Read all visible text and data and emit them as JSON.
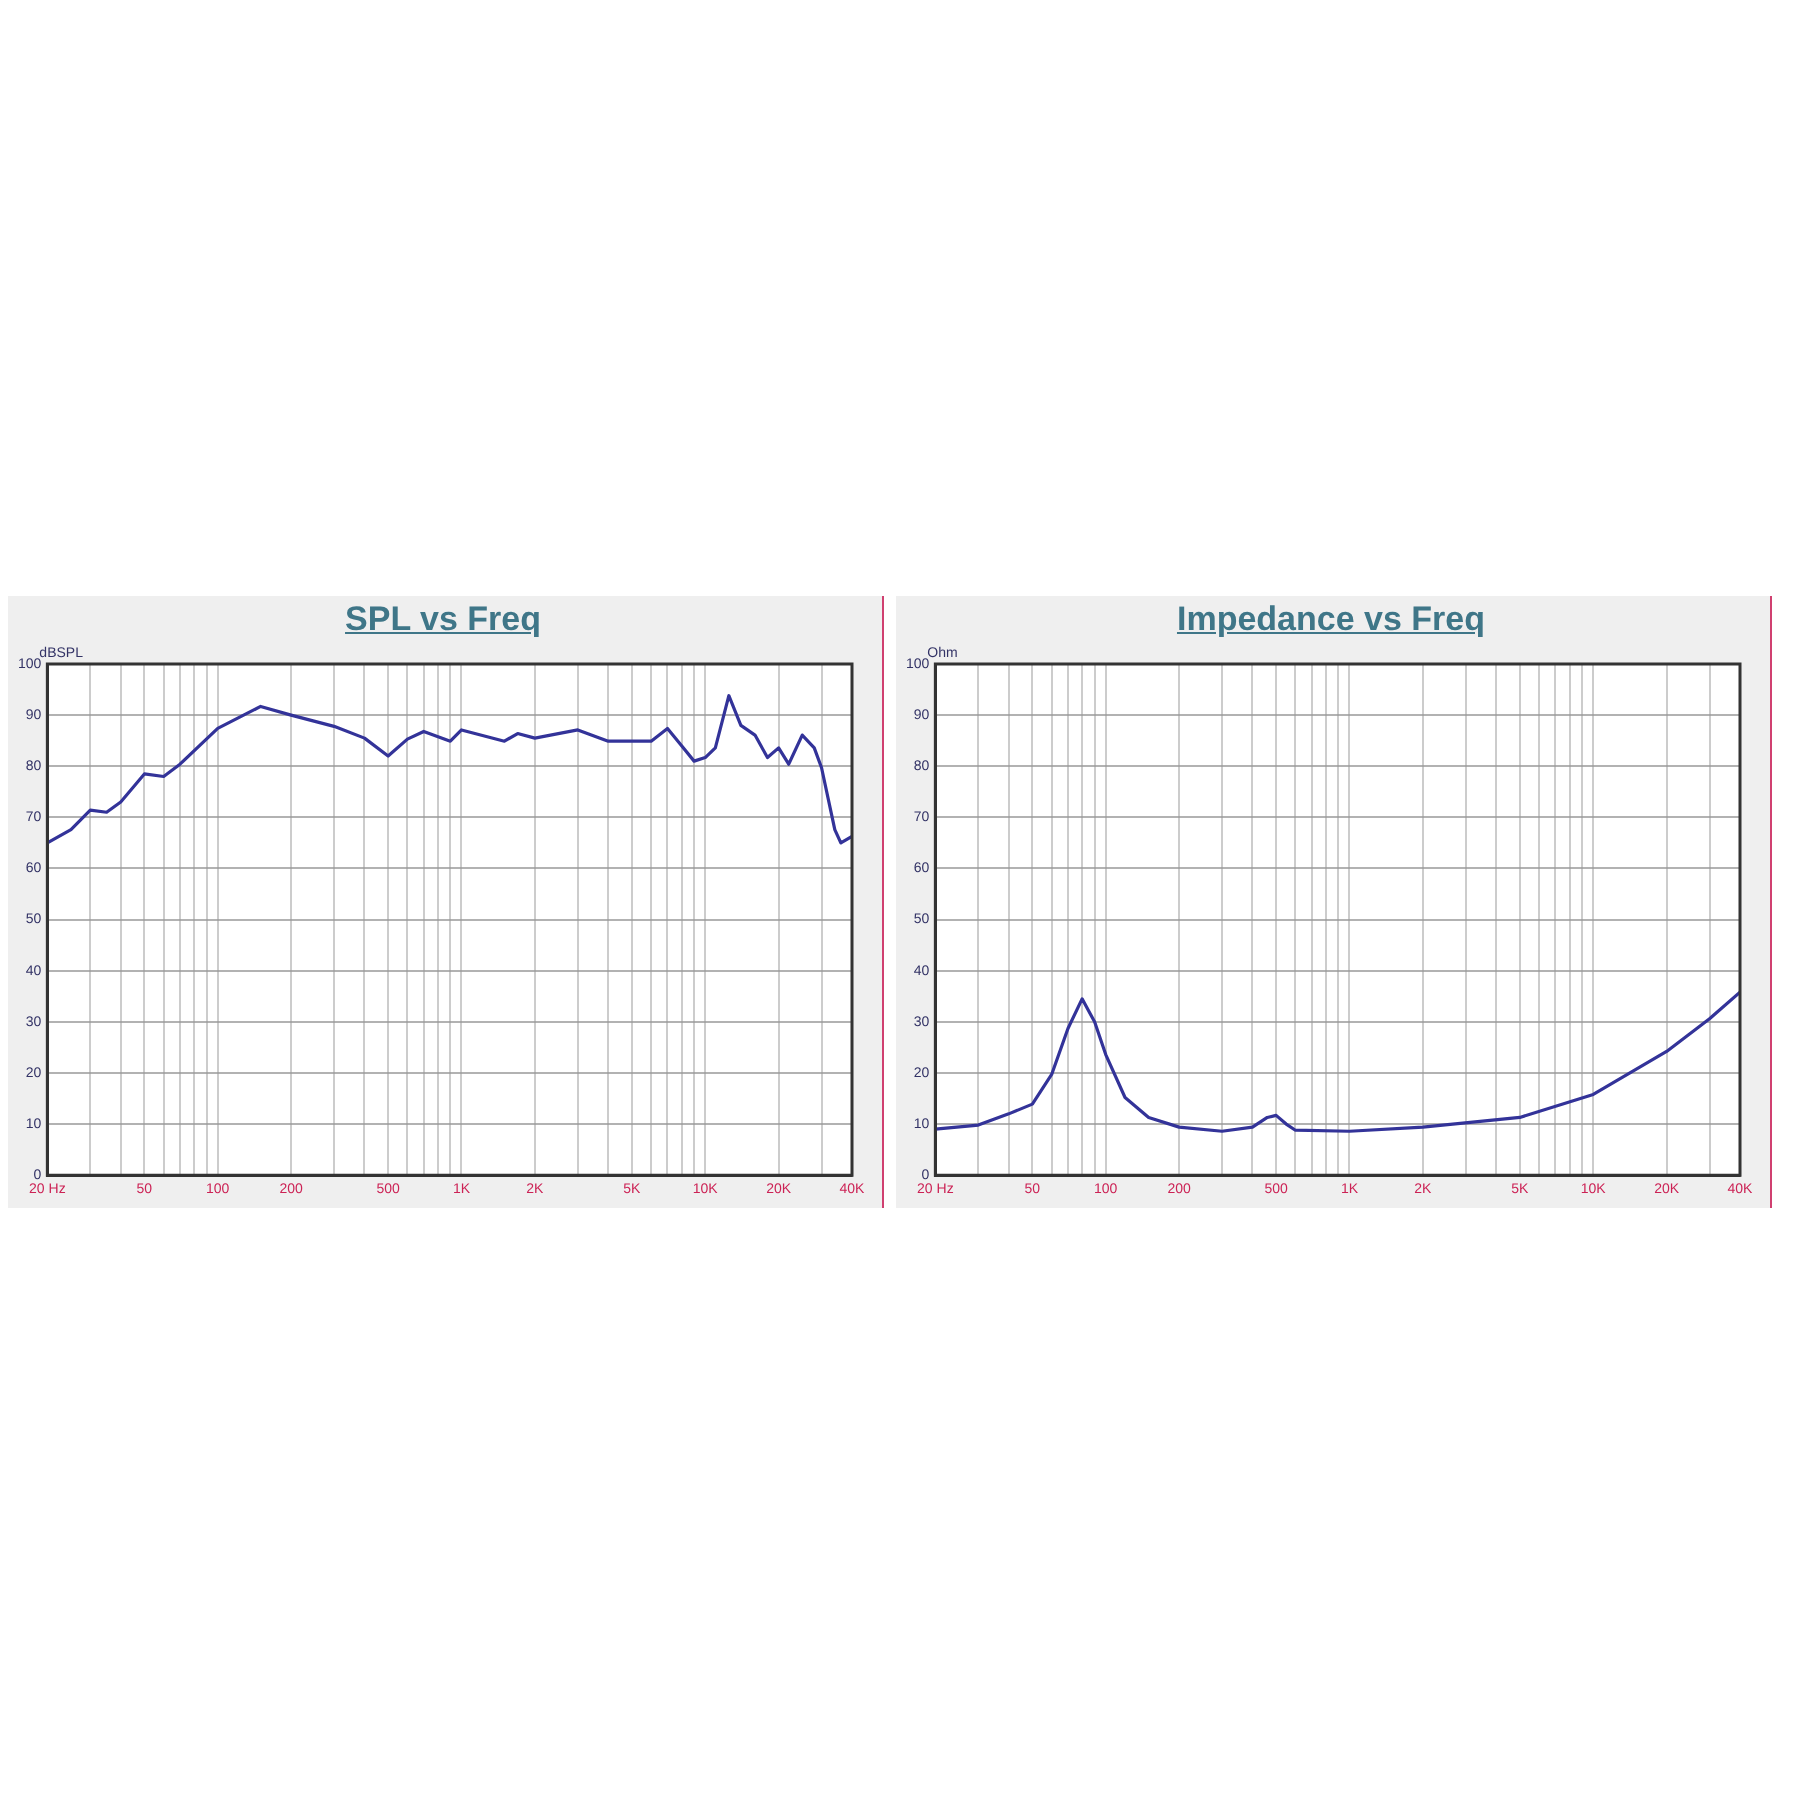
{
  "chart_data": [
    {
      "type": "line",
      "title": "SPL vs Freq",
      "ylabel": "dBSPL",
      "log": "x",
      "grid": true,
      "x": [
        20,
        25,
        30,
        35,
        40,
        50,
        60,
        70,
        100,
        150,
        200,
        300,
        400,
        500,
        600,
        700,
        900,
        1000,
        1500,
        1700,
        2000,
        3000,
        4000,
        5000,
        6000,
        7000,
        8000,
        9000,
        10000,
        11000,
        12500,
        14000,
        16000,
        18000,
        20000,
        22000,
        25000,
        28000,
        30000,
        34000,
        36000,
        40000
      ],
      "series": [
        {
          "color": "#333399",
          "values": [
            65,
            67.6,
            71.4,
            71,
            73,
            78.5,
            78,
            80.4,
            87.4,
            91.7,
            90,
            87.8,
            85.5,
            82,
            85.3,
            86.8,
            84.9,
            87.1,
            84.9,
            86.4,
            85.5,
            87.1,
            84.9,
            84.9,
            84.9,
            87.4,
            84,
            81,
            81.7,
            83.6,
            93.8,
            88,
            86.1,
            81.7,
            83.6,
            80.4,
            86.1,
            83.6,
            79.7,
            67.6,
            65,
            66.3
          ]
        }
      ],
      "xlim": [
        20,
        40000
      ],
      "xticks": [
        {
          "value": 20,
          "label": "20 Hz"
        },
        {
          "value": 30,
          "label": null
        },
        {
          "value": 40,
          "label": null
        },
        50,
        {
          "value": 60,
          "label": null
        },
        {
          "value": 70,
          "label": null
        },
        {
          "value": 80,
          "label": null
        },
        {
          "value": 90,
          "label": null
        },
        100,
        200,
        {
          "value": 300,
          "label": null
        },
        {
          "value": 400,
          "label": null
        },
        500,
        {
          "value": 600,
          "label": null
        },
        {
          "value": 700,
          "label": null
        },
        {
          "value": 800,
          "label": null
        },
        {
          "value": 900,
          "label": null
        },
        {
          "value": 1000,
          "label": "1K"
        },
        {
          "value": 2000,
          "label": "2K"
        },
        {
          "value": 3000,
          "label": null
        },
        {
          "value": 4000,
          "label": null
        },
        {
          "value": 5000,
          "label": "5K"
        },
        {
          "value": 6000,
          "label": null
        },
        {
          "value": 7000,
          "label": null
        },
        {
          "value": 8000,
          "label": null
        },
        {
          "value": 9000,
          "label": null
        },
        {
          "value": 10000,
          "label": "10K"
        },
        {
          "value": 20000,
          "label": "20K"
        },
        {
          "value": 30000,
          "label": null
        },
        {
          "value": 40000,
          "label": "40K"
        }
      ],
      "ylim": [
        0,
        100
      ],
      "yticks": [
        0,
        10,
        20,
        30,
        40,
        50,
        60,
        70,
        80,
        90,
        100
      ]
    },
    {
      "type": "line",
      "title": "Impedance vs Freq",
      "ylabel": "Ohm",
      "log": "x",
      "grid": true,
      "x": [
        20,
        30,
        40,
        50,
        60,
        70,
        80,
        90,
        100,
        120,
        150,
        200,
        300,
        400,
        460,
        500,
        550,
        600,
        1000,
        2000,
        5000,
        10000,
        20000,
        30000,
        40000
      ],
      "series": [
        {
          "color": "#333399",
          "values": [
            9,
            9.8,
            12,
            13.9,
            19.7,
            28.7,
            34.5,
            30,
            23.6,
            15.2,
            11.3,
            9.4,
            8.6,
            9.4,
            11.3,
            11.7,
            10,
            8.8,
            8.6,
            9.4,
            11.3,
            15.8,
            24.2,
            30.6,
            35.8
          ]
        }
      ],
      "xlim": [
        20,
        40000
      ],
      "xticks": [
        {
          "value": 20,
          "label": "20 Hz"
        },
        {
          "value": 30,
          "label": null
        },
        {
          "value": 40,
          "label": null
        },
        50,
        {
          "value": 60,
          "label": null
        },
        {
          "value": 70,
          "label": null
        },
        {
          "value": 80,
          "label": null
        },
        {
          "value": 90,
          "label": null
        },
        100,
        200,
        {
          "value": 300,
          "label": null
        },
        {
          "value": 400,
          "label": null
        },
        500,
        {
          "value": 600,
          "label": null
        },
        {
          "value": 700,
          "label": null
        },
        {
          "value": 800,
          "label": null
        },
        {
          "value": 900,
          "label": null
        },
        {
          "value": 1000,
          "label": "1K"
        },
        {
          "value": 2000,
          "label": "2K"
        },
        {
          "value": 3000,
          "label": null
        },
        {
          "value": 4000,
          "label": null
        },
        {
          "value": 5000,
          "label": "5K"
        },
        {
          "value": 6000,
          "label": null
        },
        {
          "value": 7000,
          "label": null
        },
        {
          "value": 8000,
          "label": null
        },
        {
          "value": 9000,
          "label": null
        },
        {
          "value": 10000,
          "label": "10K"
        },
        {
          "value": 20000,
          "label": "20K"
        },
        {
          "value": 30000,
          "label": null
        },
        {
          "value": 40000,
          "label": "40K"
        }
      ],
      "ylim": [
        0,
        100
      ],
      "yticks": [
        0,
        10,
        20,
        30,
        40,
        50,
        60,
        70,
        80,
        90,
        100
      ]
    }
  ]
}
